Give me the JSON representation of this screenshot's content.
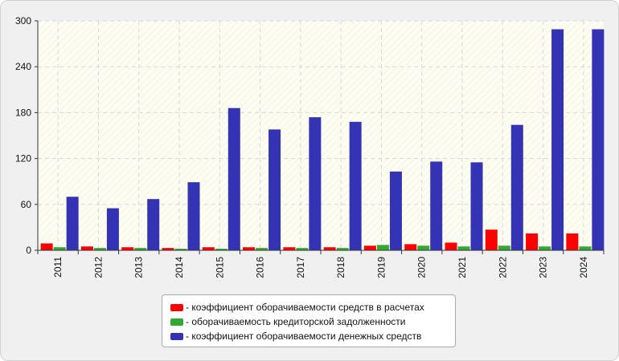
{
  "chart_data": {
    "type": "bar",
    "categories": [
      "2011",
      "2012",
      "2013",
      "2014",
      "2015",
      "2016",
      "2017",
      "2018",
      "2019",
      "2020",
      "2021",
      "2022",
      "2023",
      "2024"
    ],
    "series": [
      {
        "name": "- коэффициент оборачиваемости средств в расчетах",
        "color": "#ff0000",
        "values": [
          9,
          5,
          4,
          3,
          4,
          4,
          4,
          4,
          6,
          8,
          10,
          27,
          22,
          22
        ]
      },
      {
        "name": "- оборачиваемость кредиторской задолженности",
        "color": "#33a833",
        "values": [
          4,
          3,
          3,
          2,
          2,
          3,
          3,
          3,
          7,
          6,
          5,
          6,
          5,
          5
        ]
      },
      {
        "name": "- коэффициент оборачиваемости денежных средств",
        "color": "#3333b3",
        "values": [
          70,
          55,
          67,
          89,
          186,
          158,
          174,
          168,
          103,
          116,
          115,
          164,
          289,
          289
        ]
      }
    ],
    "yticks": [
      0,
      60,
      120,
      180,
      240,
      300
    ],
    "ylim": [
      0,
      300
    ],
    "grid": true,
    "legend_position": "bottom"
  }
}
